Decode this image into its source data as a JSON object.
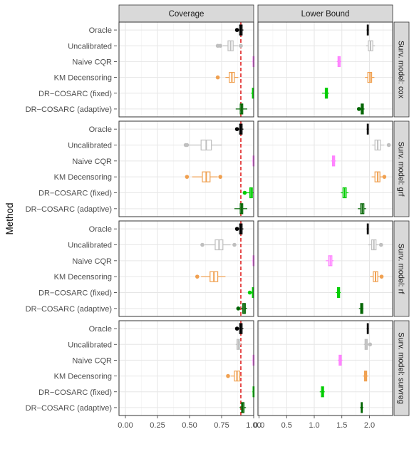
{
  "chart_data": {
    "type": "boxplot",
    "ylabel": "Method",
    "facet_columns": [
      "Coverage",
      "Lower Bound"
    ],
    "facet_rows": [
      "Surv. model: cox",
      "Surv. model: grf",
      "Surv. model: rf",
      "Surv. model: survreg"
    ],
    "methods": [
      "Oracle",
      "Uncalibrated",
      "Naive CQR",
      "KM Decensoring",
      "DR−COSARC (fixed)",
      "DR−COSARC (adaptive)"
    ],
    "method_colors": [
      "#000000",
      "#bfbfbf",
      "#ff80ff",
      "#f0a050",
      "#00cc00",
      "#006400"
    ],
    "reference_line": {
      "panel": "Coverage",
      "x": 0.9,
      "color": "#dd1111",
      "style": "dashed"
    },
    "axes": {
      "Coverage": {
        "xlim": [
          -0.05,
          1.0
        ],
        "ticks": [
          "0.00",
          "0.25",
          "0.50",
          "0.75",
          "1.00"
        ]
      },
      "Lower Bound": {
        "xlim": [
          -0.02,
          2.42
        ],
        "ticks": [
          "0.0",
          "0.5",
          "1.0",
          "1.5",
          "2.0"
        ]
      }
    },
    "grid": true,
    "panels": {
      "cox": {
        "Coverage": [
          {
            "q1": 0.89,
            "med": 0.9,
            "q3": 0.91,
            "wlo": 0.88,
            "whi": 0.92,
            "out": [
              0.87
            ]
          },
          {
            "q1": 0.8,
            "med": 0.82,
            "q3": 0.84,
            "wlo": 0.76,
            "whi": 0.88,
            "out": [
              0.72,
              0.74,
              0.9
            ]
          },
          {
            "q1": 0.995,
            "med": 0.998,
            "q3": 1.0,
            "wlo": 0.99,
            "whi": 1.0,
            "out": []
          },
          {
            "q1": 0.81,
            "med": 0.83,
            "q3": 0.85,
            "wlo": 0.78,
            "whi": 0.88,
            "out": [
              0.72
            ]
          },
          {
            "q1": 0.99,
            "med": 0.995,
            "q3": 1.0,
            "wlo": 0.98,
            "whi": 1.0,
            "out": []
          },
          {
            "q1": 0.895,
            "med": 0.905,
            "q3": 0.915,
            "wlo": 0.86,
            "whi": 0.95,
            "out": []
          }
        ],
        "Lower Bound": [
          {
            "q1": 1.96,
            "med": 1.97,
            "q3": 1.98,
            "wlo": 1.95,
            "whi": 1.99,
            "out": []
          },
          {
            "q1": 1.98,
            "med": 2.02,
            "q3": 2.06,
            "wlo": 1.94,
            "whi": 2.1,
            "out": []
          },
          {
            "q1": 1.43,
            "med": 1.45,
            "q3": 1.47,
            "wlo": 1.41,
            "whi": 1.49,
            "out": []
          },
          {
            "q1": 1.97,
            "med": 2.01,
            "q3": 2.04,
            "wlo": 1.92,
            "whi": 2.09,
            "out": []
          },
          {
            "q1": 1.2,
            "med": 1.22,
            "q3": 1.24,
            "wlo": 1.14,
            "whi": 1.27,
            "out": []
          },
          {
            "q1": 1.85,
            "med": 1.87,
            "q3": 1.89,
            "wlo": 1.82,
            "whi": 1.91,
            "out": [
              1.81
            ]
          }
        ]
      },
      "grf": {
        "Coverage": [
          {
            "q1": 0.89,
            "med": 0.9,
            "q3": 0.91,
            "wlo": 0.88,
            "whi": 0.92,
            "out": [
              0.87
            ]
          },
          {
            "q1": 0.59,
            "med": 0.63,
            "q3": 0.67,
            "wlo": 0.49,
            "whi": 0.75,
            "out": [
              0.47,
              0.48
            ]
          },
          {
            "q1": 0.995,
            "med": 0.998,
            "q3": 1.0,
            "wlo": 0.99,
            "whi": 1.0,
            "out": []
          },
          {
            "q1": 0.6,
            "med": 0.63,
            "q3": 0.66,
            "wlo": 0.52,
            "whi": 0.72,
            "out": [
              0.48,
              0.74
            ]
          },
          {
            "q1": 0.97,
            "med": 0.98,
            "q3": 0.99,
            "wlo": 0.94,
            "whi": 1.0,
            "out": [
              0.93
            ]
          },
          {
            "q1": 0.895,
            "med": 0.905,
            "q3": 0.915,
            "wlo": 0.85,
            "whi": 0.95,
            "out": []
          }
        ],
        "Lower Bound": [
          {
            "q1": 1.96,
            "med": 1.97,
            "q3": 1.98,
            "wlo": 1.95,
            "whi": 1.99,
            "out": []
          },
          {
            "q1": 2.1,
            "med": 2.15,
            "q3": 2.2,
            "wlo": 2.05,
            "whi": 2.27,
            "out": [
              2.35
            ]
          },
          {
            "q1": 1.33,
            "med": 1.35,
            "q3": 1.37,
            "wlo": 1.31,
            "whi": 1.39,
            "out": []
          },
          {
            "q1": 2.1,
            "med": 2.15,
            "q3": 2.19,
            "wlo": 2.04,
            "whi": 2.24,
            "out": [
              2.27
            ]
          },
          {
            "q1": 1.52,
            "med": 1.55,
            "q3": 1.58,
            "wlo": 1.48,
            "whi": 1.62,
            "out": []
          },
          {
            "q1": 1.84,
            "med": 1.87,
            "q3": 1.9,
            "wlo": 1.79,
            "whi": 1.94,
            "out": []
          }
        ]
      },
      "rf": {
        "Coverage": [
          {
            "q1": 0.89,
            "med": 0.9,
            "q3": 0.91,
            "wlo": 0.88,
            "whi": 0.92,
            "out": [
              0.87
            ]
          },
          {
            "q1": 0.7,
            "med": 0.73,
            "q3": 0.76,
            "wlo": 0.62,
            "whi": 0.82,
            "out": [
              0.6,
              0.85
            ]
          },
          {
            "q1": 0.995,
            "med": 0.998,
            "q3": 1.0,
            "wlo": 0.99,
            "whi": 1.0,
            "out": []
          },
          {
            "q1": 0.66,
            "med": 0.69,
            "q3": 0.72,
            "wlo": 0.59,
            "whi": 0.78,
            "out": [
              0.56
            ]
          },
          {
            "q1": 0.99,
            "med": 0.995,
            "q3": 1.0,
            "wlo": 0.98,
            "whi": 1.0,
            "out": [
              0.97
            ]
          },
          {
            "q1": 0.915,
            "med": 0.925,
            "q3": 0.935,
            "wlo": 0.9,
            "whi": 0.95,
            "out": [
              0.88
            ]
          }
        ],
        "Lower Bound": [
          {
            "q1": 1.96,
            "med": 1.97,
            "q3": 1.98,
            "wlo": 1.95,
            "whi": 1.99,
            "out": []
          },
          {
            "q1": 2.04,
            "med": 2.08,
            "q3": 2.12,
            "wlo": 1.98,
            "whi": 2.17,
            "out": [
              2.21
            ]
          },
          {
            "q1": 1.26,
            "med": 1.29,
            "q3": 1.32,
            "wlo": 1.21,
            "whi": 1.35,
            "out": []
          },
          {
            "q1": 2.07,
            "med": 2.11,
            "q3": 2.15,
            "wlo": 2.01,
            "whi": 2.18,
            "out": [
              2.22
            ]
          },
          {
            "q1": 1.42,
            "med": 1.44,
            "q3": 1.46,
            "wlo": 1.39,
            "whi": 1.48,
            "out": []
          },
          {
            "q1": 1.84,
            "med": 1.86,
            "q3": 1.88,
            "wlo": 1.81,
            "whi": 1.89,
            "out": []
          }
        ]
      },
      "survreg": {
        "Coverage": [
          {
            "q1": 0.89,
            "med": 0.9,
            "q3": 0.91,
            "wlo": 0.88,
            "whi": 0.92,
            "out": [
              0.87
            ]
          },
          {
            "q1": 0.87,
            "med": 0.88,
            "q3": 0.89,
            "wlo": 0.86,
            "whi": 0.9,
            "out": []
          },
          {
            "q1": 0.995,
            "med": 0.998,
            "q3": 1.0,
            "wlo": 0.99,
            "whi": 1.0,
            "out": []
          },
          {
            "q1": 0.85,
            "med": 0.87,
            "q3": 0.89,
            "wlo": 0.82,
            "whi": 0.91,
            "out": [
              0.8
            ]
          },
          {
            "q1": 0.995,
            "med": 0.998,
            "q3": 1.0,
            "wlo": 0.99,
            "whi": 1.0,
            "out": []
          },
          {
            "q1": 0.905,
            "med": 0.915,
            "q3": 0.925,
            "wlo": 0.89,
            "whi": 0.94,
            "out": []
          }
        ],
        "Lower Bound": [
          {
            "q1": 1.96,
            "med": 1.97,
            "q3": 1.98,
            "wlo": 1.95,
            "whi": 1.99,
            "out": []
          },
          {
            "q1": 1.92,
            "med": 1.94,
            "q3": 1.96,
            "wlo": 1.9,
            "whi": 1.98,
            "out": [
              2.01
            ]
          },
          {
            "q1": 1.45,
            "med": 1.47,
            "q3": 1.49,
            "wlo": 1.43,
            "whi": 1.51,
            "out": []
          },
          {
            "q1": 1.91,
            "med": 1.93,
            "q3": 1.95,
            "wlo": 1.88,
            "whi": 1.98,
            "out": []
          },
          {
            "q1": 1.13,
            "med": 1.15,
            "q3": 1.17,
            "wlo": 1.1,
            "whi": 1.19,
            "out": []
          },
          {
            "q1": 1.85,
            "med": 1.86,
            "q3": 1.87,
            "wlo": 1.83,
            "whi": 1.89,
            "out": []
          }
        ]
      }
    }
  }
}
